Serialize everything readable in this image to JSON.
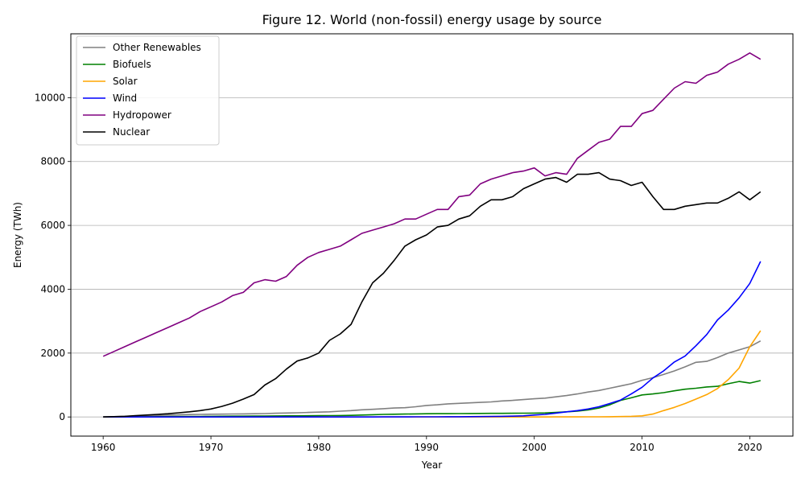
{
  "chart_data": {
    "type": "line",
    "title": "Figure 12. World (non-fossil) energy usage by source",
    "xlabel": "Year",
    "ylabel": "Energy (TWh)",
    "xlim": [
      1957,
      2024
    ],
    "ylim": [
      -600,
      12000
    ],
    "xticks": [
      1960,
      1970,
      1980,
      1990,
      2000,
      2010,
      2020
    ],
    "yticks": [
      0,
      2000,
      4000,
      6000,
      8000,
      10000
    ],
    "grid": "horizontal",
    "legend_position": "top-left",
    "x": [
      1960,
      1961,
      1962,
      1963,
      1964,
      1965,
      1966,
      1967,
      1968,
      1969,
      1970,
      1971,
      1972,
      1973,
      1974,
      1975,
      1976,
      1977,
      1978,
      1979,
      1980,
      1981,
      1982,
      1983,
      1984,
      1985,
      1986,
      1987,
      1988,
      1989,
      1990,
      1991,
      1992,
      1993,
      1994,
      1995,
      1996,
      1997,
      1998,
      1999,
      2000,
      2001,
      2002,
      2003,
      2004,
      2005,
      2006,
      2007,
      2008,
      2009,
      2010,
      2011,
      2012,
      2013,
      2014,
      2015,
      2016,
      2017,
      2018,
      2019,
      2020,
      2021
    ],
    "series": [
      {
        "name": "Other Renewables",
        "color": "#808080",
        "values": [
          0,
          10,
          20,
          30,
          40,
          50,
          60,
          70,
          75,
          80,
          85,
          88,
          92,
          96,
          100,
          105,
          115,
          122,
          130,
          140,
          150,
          160,
          180,
          200,
          225,
          240,
          260,
          280,
          290,
          320,
          360,
          380,
          410,
          425,
          440,
          455,
          470,
          500,
          520,
          545,
          570,
          590,
          630,
          670,
          720,
          780,
          830,
          900,
          970,
          1040,
          1150,
          1230,
          1330,
          1440,
          1570,
          1710,
          1740,
          1860,
          2000,
          2100,
          2200,
          2380
        ]
      },
      {
        "name": "Biofuels",
        "color": "#008000",
        "values": [
          0,
          2,
          4,
          6,
          8,
          10,
          12,
          14,
          16,
          18,
          20,
          22,
          24,
          26,
          28,
          30,
          32,
          34,
          36,
          38,
          40,
          42,
          45,
          50,
          60,
          70,
          80,
          85,
          90,
          95,
          100,
          102,
          104,
          106,
          108,
          110,
          112,
          114,
          116,
          118,
          120,
          125,
          140,
          160,
          180,
          220,
          280,
          380,
          520,
          600,
          690,
          720,
          760,
          820,
          870,
          900,
          940,
          960,
          1040,
          1110,
          1060,
          1140
        ]
      },
      {
        "name": "Solar",
        "color": "#FFA500",
        "values": [
          0,
          0,
          0,
          0,
          0,
          0,
          0,
          0,
          0,
          0,
          0,
          0,
          0,
          0,
          0,
          0,
          0,
          0,
          0,
          0,
          0,
          0,
          0,
          0,
          0,
          0,
          0,
          0,
          0,
          0,
          0,
          0,
          0,
          0,
          0,
          0,
          0,
          0,
          0,
          0,
          1,
          1,
          2,
          2,
          3,
          4,
          6,
          8,
          12,
          20,
          35,
          90,
          200,
          300,
          420,
          560,
          700,
          890,
          1170,
          1530,
          2200,
          2700
        ]
      },
      {
        "name": "Wind",
        "color": "#0000FF",
        "values": [
          0,
          0,
          0,
          0,
          0,
          0,
          0,
          0,
          0,
          0,
          0,
          0,
          0,
          0,
          0,
          0,
          0,
          0,
          0,
          0,
          0,
          0,
          0,
          0,
          1,
          1,
          2,
          2,
          3,
          4,
          5,
          6,
          7,
          8,
          10,
          12,
          15,
          20,
          25,
          35,
          60,
          80,
          120,
          160,
          200,
          250,
          320,
          420,
          530,
          720,
          930,
          1220,
          1440,
          1720,
          1910,
          2230,
          2580,
          3040,
          3350,
          3730,
          4180,
          4870
        ]
      },
      {
        "name": "Hydropower",
        "color": "#800080",
        "values": [
          1900,
          2050,
          2200,
          2350,
          2500,
          2650,
          2800,
          2950,
          3100,
          3300,
          3450,
          3600,
          3800,
          3900,
          4200,
          4300,
          4250,
          4400,
          4750,
          5000,
          5150,
          5250,
          5350,
          5550,
          5750,
          5850,
          5950,
          6050,
          6200,
          6200,
          6350,
          6500,
          6500,
          6900,
          6950,
          7300,
          7450,
          7550,
          7650,
          7700,
          7800,
          7550,
          7650,
          7600,
          8100,
          8350,
          8600,
          8700,
          9100,
          9100,
          9500,
          9600,
          9950,
          10300,
          10500,
          10450,
          10700,
          10800,
          11050,
          11200,
          11400,
          11200
        ]
      },
      {
        "name": "Nuclear",
        "color": "#000000",
        "values": [
          0,
          10,
          20,
          40,
          60,
          80,
          100,
          130,
          160,
          200,
          250,
          330,
          430,
          560,
          700,
          1000,
          1200,
          1500,
          1750,
          1850,
          2000,
          2400,
          2600,
          2900,
          3600,
          4200,
          4500,
          4900,
          5350,
          5550,
          5700,
          5950,
          6000,
          6200,
          6300,
          6600,
          6800,
          6800,
          6900,
          7150,
          7300,
          7450,
          7500,
          7350,
          7600,
          7600,
          7650,
          7450,
          7400,
          7250,
          7350,
          6900,
          6500,
          6500,
          6600,
          6650,
          6700,
          6700,
          6850,
          7050,
          6800,
          7050
        ]
      }
    ]
  }
}
